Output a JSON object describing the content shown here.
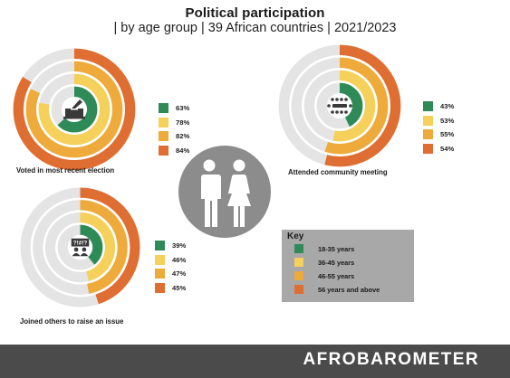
{
  "header": {
    "title": "Political participation",
    "subtitle": "| by age group | 39 African countries | 2021/2023"
  },
  "colors": {
    "g1": "#2e8b57",
    "g2": "#f5d05a",
    "g3": "#eeaa3a",
    "g4": "#df6e32",
    "track": "#e4e4e4",
    "icon_gray": "#8c8c8c",
    "key_bg": "#a8a8a8",
    "footer_bg": "#4b4b4b"
  },
  "key": {
    "title": "Key",
    "items": [
      "18-35 years",
      "36-45 years",
      "46-55 years",
      "56 years and above"
    ]
  },
  "chart_data": [
    {
      "type": "radial-bar",
      "title": "Voted in most recent election",
      "icon": "ballot-box-icon",
      "series": [
        {
          "name": "18-35 years",
          "value": 63,
          "label": "63%"
        },
        {
          "name": "36-45 years",
          "value": 78,
          "label": "78%"
        },
        {
          "name": "46-55 years",
          "value": 82,
          "label": "82%"
        },
        {
          "name": "56 years and above",
          "value": 84,
          "label": "84%"
        }
      ],
      "ylim": [
        0,
        100
      ]
    },
    {
      "type": "radial-bar",
      "title": "Attended community meeting",
      "icon": "community-meeting-icon",
      "series": [
        {
          "name": "18-35 years",
          "value": 43,
          "label": "43%"
        },
        {
          "name": "36-45 years",
          "value": 53,
          "label": "53%"
        },
        {
          "name": "46-55 years",
          "value": 55,
          "label": "55%"
        },
        {
          "name": "56 years and above",
          "value": 54,
          "label": "54%"
        }
      ],
      "ylim": [
        0,
        100
      ]
    },
    {
      "type": "radial-bar",
      "title": "Joined others to raise an issue",
      "icon": "protest-sign-icon",
      "series": [
        {
          "name": "18-35 years",
          "value": 39,
          "label": "39%"
        },
        {
          "name": "36-45 years",
          "value": 46,
          "label": "46%"
        },
        {
          "name": "46-55 years",
          "value": 47,
          "label": "47%"
        },
        {
          "name": "56 years and above",
          "value": 45,
          "label": "45%"
        }
      ],
      "ylim": [
        0,
        100
      ]
    }
  ],
  "footer": {
    "brand": "AFROBAROMETER"
  }
}
